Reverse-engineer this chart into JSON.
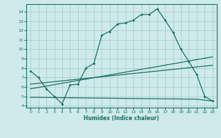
{
  "xlabel": "Humidex (Indice chaleur)",
  "bg_color": "#ceeaea",
  "grid_color": "#aacece",
  "line_color": "#1a6e64",
  "xlim": [
    -0.5,
    23.5
  ],
  "ylim": [
    3.8,
    14.8
  ],
  "yticks": [
    4,
    5,
    6,
    7,
    8,
    9,
    10,
    11,
    12,
    13,
    14
  ],
  "xticks": [
    0,
    1,
    2,
    3,
    4,
    5,
    6,
    7,
    8,
    9,
    10,
    11,
    12,
    13,
    14,
    15,
    16,
    17,
    18,
    19,
    20,
    21,
    22,
    23
  ],
  "line1_x": [
    0,
    1,
    2,
    3,
    4,
    5,
    6,
    7,
    8,
    9,
    10,
    11,
    12,
    13,
    14,
    15,
    16,
    17,
    18,
    19,
    20,
    21,
    22,
    23
  ],
  "line1_y": [
    7.7,
    7.0,
    5.8,
    5.0,
    4.2,
    6.2,
    6.3,
    8.0,
    8.5,
    11.5,
    11.9,
    12.7,
    12.8,
    13.1,
    13.7,
    13.7,
    14.3,
    13.1,
    11.8,
    10.0,
    8.7,
    7.3,
    5.0,
    4.5
  ],
  "line2_x": [
    0,
    23
  ],
  "line2_y": [
    5.8,
    9.2
  ],
  "line3_x": [
    0,
    23
  ],
  "line3_y": [
    6.3,
    8.3
  ],
  "line4_x": [
    0,
    10,
    21,
    23
  ],
  "line4_y": [
    4.9,
    4.8,
    4.7,
    4.5
  ]
}
